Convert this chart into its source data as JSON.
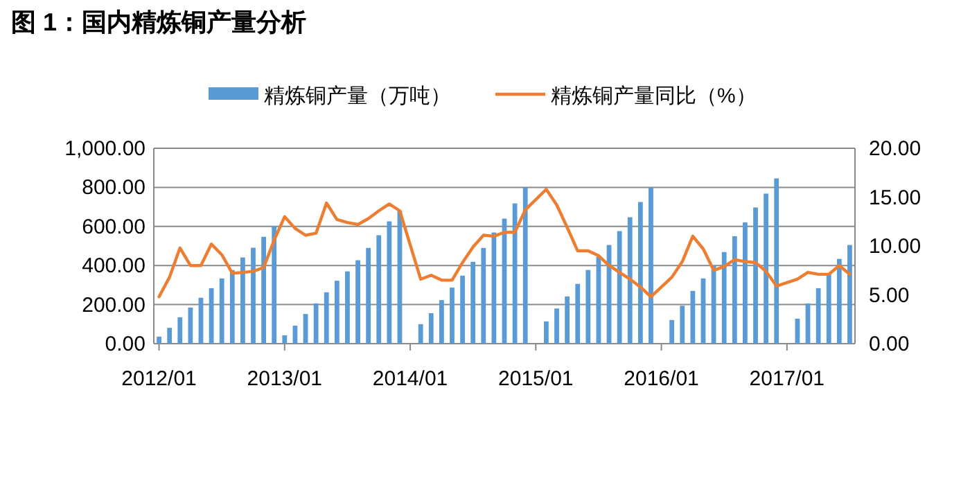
{
  "chart_data": {
    "type": "bar",
    "title": "图 1：国内精炼铜产量分析",
    "categories": [
      "2012/01",
      null,
      null,
      null,
      null,
      null,
      null,
      null,
      null,
      null,
      null,
      null,
      "2013/01",
      null,
      null,
      null,
      null,
      null,
      null,
      null,
      null,
      null,
      null,
      null,
      "2014/01",
      null,
      null,
      null,
      null,
      null,
      null,
      null,
      null,
      null,
      null,
      null,
      "2015/01",
      null,
      null,
      null,
      null,
      null,
      null,
      null,
      null,
      null,
      null,
      null,
      "2016/01",
      null,
      null,
      null,
      null,
      null,
      null,
      null,
      null,
      null,
      null,
      null,
      "2017/01",
      null,
      null,
      null,
      null,
      null,
      null
    ],
    "series": [
      {
        "name": "精炼铜产量（万吨）",
        "type": "bar",
        "color": "#5b9bd5",
        "values": [
          36,
          81,
          135,
          185,
          235,
          284,
          334,
          377,
          441,
          491,
          547,
          602,
          43,
          92,
          152,
          206,
          263,
          322,
          370,
          427,
          490,
          555,
          626,
          680,
          null,
          100,
          156,
          223,
          287,
          348,
          419,
          490,
          569,
          640,
          718,
          799,
          null,
          114,
          180,
          242,
          306,
          377,
          445,
          505,
          576,
          647,
          725,
          799,
          null,
          121,
          194,
          270,
          334,
          400,
          469,
          550,
          621,
          697,
          768,
          846,
          null,
          128,
          206,
          284,
          358,
          434,
          505
        ]
      },
      {
        "name": "精炼铜产量同比（%）",
        "type": "line",
        "axis": "y2",
        "color": "#ed7d31",
        "values": [
          4.8,
          6.8,
          9.8,
          8.0,
          8.0,
          10.2,
          9.1,
          7.2,
          7.3,
          7.4,
          7.8,
          10.6,
          13.0,
          11.8,
          11.1,
          11.3,
          14.4,
          12.7,
          12.4,
          12.2,
          12.8,
          13.6,
          14.3,
          13.6,
          null,
          6.6,
          7.0,
          6.5,
          6.5,
          8.3,
          9.9,
          11.1,
          11.0,
          11.4,
          11.4,
          13.7,
          null,
          15.8,
          14.2,
          11.9,
          9.5,
          9.5,
          9.0,
          8.0,
          7.3,
          6.6,
          5.8,
          4.8,
          null,
          6.8,
          8.4,
          11.0,
          9.7,
          7.5,
          7.9,
          8.6,
          8.4,
          8.3,
          7.4,
          5.9,
          null,
          6.6,
          7.3,
          7.1,
          7.1,
          8.0,
          7.1
        ]
      }
    ],
    "ylim": [
      0,
      1000
    ],
    "yticks": [
      {
        "value": 0,
        "label": "0.00"
      },
      {
        "value": 200,
        "label": "200.00"
      },
      {
        "value": 400,
        "label": "400.00"
      },
      {
        "value": 600,
        "label": "600.00"
      },
      {
        "value": 800,
        "label": "800.00"
      },
      {
        "value": 1000,
        "label": "1,000.00"
      }
    ],
    "y2lim": [
      0,
      20
    ],
    "y2ticks": [
      {
        "value": 0,
        "label": "0.00"
      },
      {
        "value": 5,
        "label": "5.00"
      },
      {
        "value": 10,
        "label": "10.00"
      },
      {
        "value": 15,
        "label": "15.00"
      },
      {
        "value": 20,
        "label": "20.00"
      }
    ],
    "grid": "y",
    "legend": "top"
  }
}
